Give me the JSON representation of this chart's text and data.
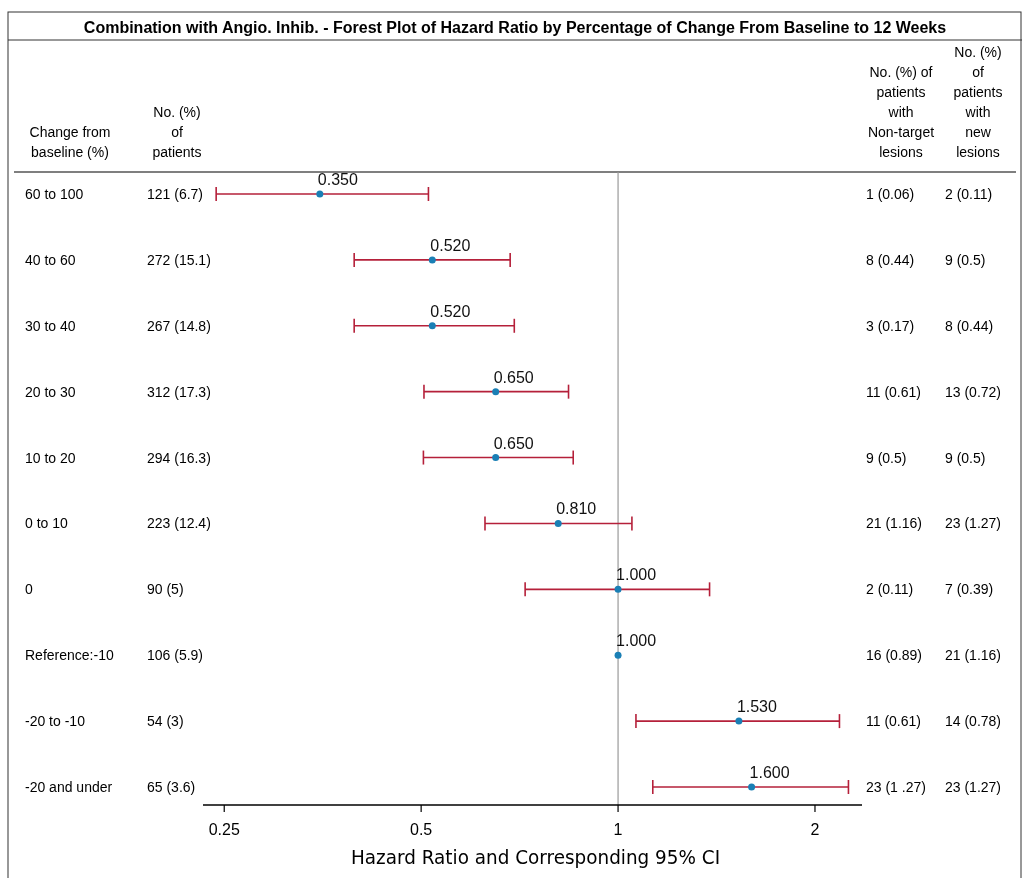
{
  "chart_data": {
    "type": "scatter",
    "orientation": "horizontal",
    "title": "Combination with Angio. Inhib. - Forest Plot of Hazard Ratio by Percentage of Change From Baseline to 12 Weeks",
    "xlabel": "Hazard Ratio and Corresponding 95% CI",
    "categories": [
      "60 to 100",
      "40 to 60",
      "30 to 40",
      "20 to 30",
      "10 to 20",
      "0 to 10",
      "0",
      "Reference:-10",
      "-20 to -10",
      "-20 and under"
    ],
    "series": [
      {
        "color": "#1a7fb5",
        "values": [
          0.35,
          0.52,
          0.52,
          0.65,
          0.65,
          0.81,
          1.0,
          1.0,
          1.53,
          1.6
        ],
        "errors": [
          [
            0.243,
            0.513
          ],
          [
            0.395,
            0.684
          ],
          [
            0.395,
            0.694
          ],
          [
            0.505,
            0.84
          ],
          [
            0.504,
            0.854
          ],
          [
            0.626,
            1.05
          ],
          [
            0.721,
            1.38
          ],
          null,
          [
            1.065,
            2.18
          ],
          [
            1.13,
            2.25
          ]
        ],
        "value_labels": [
          "0.350",
          "0.520",
          "0.520",
          "0.650",
          "0.650",
          "0.810",
          "1.000",
          "1.000",
          "1.530",
          "1.600"
        ]
      }
    ],
    "log": "x",
    "xlim": [
      0.232,
      2.36
    ],
    "xticks": [
      0.25,
      0.5,
      1,
      2
    ],
    "marker": "circle",
    "ref_lines": [
      {
        "axis": "x",
        "value": 1,
        "color": "#999999"
      }
    ],
    "annotations": [
      "Change from baseline (%)",
      "No. (%) of patients",
      "No. (%) of patients with Non-target lesions",
      "No. (%) of patients with new lesions",
      "121 (6.7)",
      "1 (0.06)",
      "2 (0.11)",
      "272 (15.1)",
      "8 (0.44)",
      "9 (0.5)",
      "267 (14.8)",
      "3 (0.17)",
      "8 (0.44)",
      "312 (17.3)",
      "11 (0.61)",
      "13 (0.72)",
      "294 (16.3)",
      "9 (0.5)",
      "9 (0.5)",
      "223 (12.4)",
      "21 (1.16)",
      "23 (1.27)",
      "90 (5)",
      "2 (0.11)",
      "7 (0.39)",
      "106 (5.9)",
      "16 (0.89)",
      "21 (1.16)",
      "54 (3)",
      "11 (0.61)",
      "14 (0.78)",
      "65 (3.6)",
      "23 (1 .27)",
      "23 (1.27)"
    ]
  }
}
